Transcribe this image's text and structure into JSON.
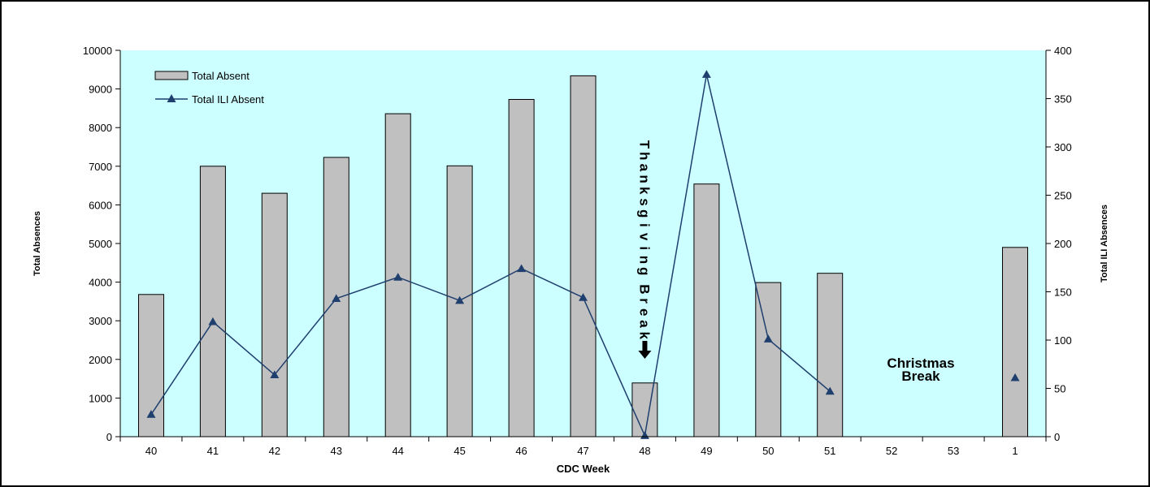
{
  "chart_data": {
    "type": "bar",
    "title": "",
    "xlabel": "CDC Week",
    "ylabel": "Total Absences",
    "y2label": "Total ILI Absences",
    "categories": [
      "40",
      "41",
      "42",
      "43",
      "44",
      "45",
      "46",
      "47",
      "48",
      "49",
      "50",
      "51",
      "52",
      "53",
      "1"
    ],
    "ylim": [
      0,
      10000
    ],
    "y2lim": [
      0,
      400
    ],
    "yticks": [
      "0",
      "1000",
      "2000",
      "3000",
      "4000",
      "5000",
      "6000",
      "7000",
      "8000",
      "9000",
      "10000"
    ],
    "y2ticks": [
      "0",
      "50",
      "100",
      "150",
      "200",
      "250",
      "300",
      "350",
      "400"
    ],
    "grid": false,
    "legend_position": "top-left",
    "plot_background": "#ccffff",
    "series": [
      {
        "name": "Total Absent",
        "type": "bar",
        "axis": "left",
        "color": "#c0c0c0",
        "values": [
          3680,
          7000,
          6300,
          7230,
          8360,
          7010,
          8730,
          9340,
          1390,
          6540,
          3990,
          4230,
          null,
          null,
          4900
        ]
      },
      {
        "name": "Total ILI Absent",
        "type": "line",
        "axis": "right",
        "color": "#1f3f6e",
        "marker": "triangle",
        "values": [
          23,
          119,
          64,
          143,
          165,
          141,
          174,
          144,
          1,
          375,
          101,
          47,
          null,
          null,
          61
        ]
      }
    ],
    "annotations": [
      {
        "text": "Thanksgiving Break",
        "category": "48",
        "orientation": "vertical",
        "arrow": "down"
      },
      {
        "text": "Christmas Break",
        "category": "52",
        "orientation": "horizontal"
      }
    ]
  }
}
